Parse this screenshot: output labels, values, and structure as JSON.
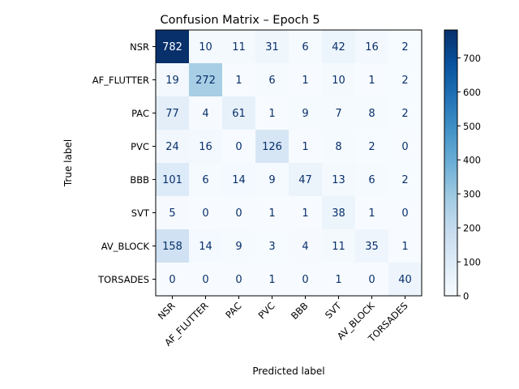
{
  "chart_data": {
    "type": "heatmap",
    "title": "Confusion Matrix – Epoch 5",
    "xlabel": "Predicted label",
    "ylabel": "True label",
    "x_categories": [
      "NSR",
      "AF_FLUTTER",
      "PAC",
      "PVC",
      "BBB",
      "SVT",
      "AV_BLOCK",
      "TORSADES"
    ],
    "y_categories": [
      "NSR",
      "AF_FLUTTER",
      "PAC",
      "PVC",
      "BBB",
      "SVT",
      "AV_BLOCK",
      "TORSADES"
    ],
    "values": [
      [
        782,
        10,
        11,
        31,
        6,
        42,
        16,
        2
      ],
      [
        19,
        272,
        1,
        6,
        1,
        10,
        1,
        2
      ],
      [
        77,
        4,
        61,
        1,
        9,
        7,
        8,
        2
      ],
      [
        24,
        16,
        0,
        126,
        1,
        8,
        2,
        0
      ],
      [
        101,
        6,
        14,
        9,
        47,
        13,
        6,
        2
      ],
      [
        5,
        0,
        0,
        1,
        1,
        38,
        1,
        0
      ],
      [
        158,
        14,
        9,
        3,
        4,
        11,
        35,
        1
      ],
      [
        0,
        0,
        0,
        1,
        0,
        1,
        0,
        40
      ]
    ],
    "colormap": "Blues",
    "colorbar": {
      "min": 0,
      "max": 782,
      "ticks": [
        0,
        100,
        200,
        300,
        400,
        500,
        600,
        700
      ]
    },
    "text_colors": {
      "dark_cells": "#08306b",
      "light_cells": "#ffffff"
    }
  }
}
